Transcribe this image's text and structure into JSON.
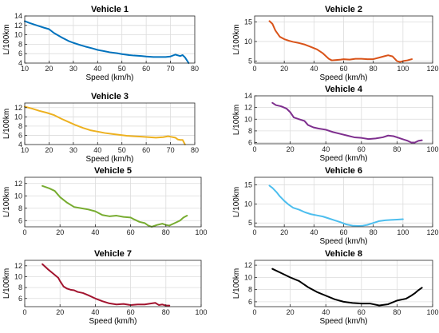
{
  "chart_data": [
    {
      "type": "line",
      "title": "Vehicle 1",
      "xlabel": "Speed (km/h)",
      "ylabel": "L/100km",
      "xlim": [
        10,
        80
      ],
      "ylim": [
        4,
        14
      ],
      "xticks": [
        10,
        20,
        30,
        40,
        50,
        60,
        70,
        80
      ],
      "yticks": [
        4,
        6,
        8,
        10,
        12,
        14
      ],
      "grid": true,
      "color": "#0072BD",
      "series": [
        {
          "x": [
            10,
            12,
            15,
            18,
            20,
            22,
            25,
            28,
            30,
            33,
            35,
            38,
            40,
            43,
            45,
            48,
            50,
            53,
            55,
            58,
            60,
            63,
            65,
            68,
            70,
            72,
            74,
            75,
            76,
            77.5
          ],
          "y": [
            12.9,
            12.5,
            12.0,
            11.5,
            11.2,
            10.4,
            9.5,
            8.7,
            8.3,
            7.8,
            7.5,
            7.1,
            6.8,
            6.5,
            6.3,
            6.1,
            5.9,
            5.7,
            5.6,
            5.5,
            5.4,
            5.3,
            5.3,
            5.3,
            5.4,
            5.8,
            5.5,
            5.7,
            5.2,
            4.0
          ]
        }
      ]
    },
    {
      "type": "line",
      "title": "Vehicle 2",
      "xlabel": "Speed (km/h)",
      "ylabel": "L/100km",
      "xlim": [
        0,
        120
      ],
      "ylim": [
        4.5,
        16.5
      ],
      "xticks": [
        0,
        20,
        40,
        60,
        80,
        100,
        120
      ],
      "yticks": [
        5,
        10,
        15
      ],
      "grid": true,
      "color": "#D95319",
      "series": [
        {
          "x": [
            10,
            12,
            14,
            17,
            20,
            23,
            26,
            30,
            34,
            38,
            42,
            46,
            50,
            52,
            55,
            58,
            60,
            64,
            68,
            72,
            76,
            80,
            84,
            88,
            90,
            93,
            96,
            98,
            100,
            103,
            106
          ],
          "y": [
            15.2,
            14.5,
            12.8,
            11.2,
            10.6,
            10.2,
            9.9,
            9.6,
            9.2,
            8.6,
            8.0,
            7.0,
            5.6,
            5.2,
            5.3,
            5.4,
            5.5,
            5.4,
            5.6,
            5.6,
            5.5,
            5.5,
            5.9,
            6.3,
            6.5,
            6.2,
            5.0,
            4.8,
            5.0,
            5.2,
            5.5
          ]
        }
      ]
    },
    {
      "type": "line",
      "title": "Vehicle 3",
      "xlabel": "Speed (km/h)",
      "ylabel": "L/100km",
      "xlim": [
        10,
        80
      ],
      "ylim": [
        4,
        13
      ],
      "xticks": [
        10,
        20,
        30,
        40,
        50,
        60,
        70,
        80
      ],
      "yticks": [
        4,
        6,
        8,
        10,
        12
      ],
      "grid": true,
      "color": "#EDB120",
      "series": [
        {
          "x": [
            10,
            13,
            16,
            19,
            22,
            25,
            28,
            31,
            34,
            37,
            40,
            43,
            46,
            49,
            52,
            55,
            58,
            61,
            64,
            67,
            69,
            70,
            72,
            73,
            74,
            75,
            76
          ],
          "y": [
            12.2,
            11.8,
            11.3,
            10.9,
            10.4,
            9.6,
            8.9,
            8.2,
            7.6,
            7.1,
            6.8,
            6.5,
            6.3,
            6.1,
            5.9,
            5.8,
            5.7,
            5.6,
            5.5,
            5.6,
            5.8,
            5.7,
            5.5,
            5.1,
            5.0,
            5.0,
            4.0
          ]
        }
      ]
    },
    {
      "type": "line",
      "title": "Vehicle 4",
      "xlabel": "Speed (km/h)",
      "ylabel": "L/100km",
      "xlim": [
        0,
        100
      ],
      "ylim": [
        5.8,
        14
      ],
      "xticks": [
        0,
        20,
        40,
        60,
        80,
        100
      ],
      "yticks": [
        6,
        8,
        10,
        12,
        14
      ],
      "grid": true,
      "color": "#7E2F8E",
      "series": [
        {
          "x": [
            10,
            12,
            15,
            18,
            20,
            22,
            25,
            28,
            30,
            33,
            36,
            40,
            44,
            48,
            52,
            56,
            60,
            64,
            68,
            72,
            75,
            78,
            80,
            83,
            86,
            88,
            90,
            92,
            94
          ],
          "y": [
            12.8,
            12.4,
            12.2,
            11.8,
            11.2,
            10.3,
            10.0,
            9.7,
            9.0,
            8.6,
            8.4,
            8.2,
            7.8,
            7.5,
            7.2,
            6.9,
            6.8,
            6.6,
            6.7,
            6.9,
            7.2,
            7.1,
            6.9,
            6.6,
            6.3,
            6.0,
            6.0,
            6.3,
            6.4
          ]
        }
      ]
    },
    {
      "type": "line",
      "title": "Vehicle 5",
      "xlabel": "",
      "ylabel": "L/100km",
      "xlim": [
        0,
        100
      ],
      "ylim": [
        5,
        13
      ],
      "xticks": [
        0,
        20,
        40,
        60,
        80,
        100
      ],
      "yticks": [
        6,
        8,
        10,
        12
      ],
      "grid": true,
      "color": "#77AC30",
      "series": [
        {
          "x": [
            10,
            14,
            17,
            20,
            24,
            28,
            32,
            36,
            40,
            44,
            48,
            52,
            56,
            60,
            62,
            65,
            68,
            70,
            72,
            75,
            78,
            80,
            82,
            85,
            88,
            90,
            92
          ],
          "y": [
            11.6,
            11.2,
            10.8,
            9.8,
            8.9,
            8.2,
            8.0,
            7.8,
            7.5,
            6.9,
            6.7,
            6.8,
            6.6,
            6.5,
            6.2,
            5.8,
            5.6,
            5.2,
            5.0,
            5.3,
            5.5,
            5.3,
            5.2,
            5.6,
            6.0,
            6.5,
            6.8
          ]
        }
      ]
    },
    {
      "type": "line",
      "title": "Vehicle 6",
      "xlabel": "Speed (km/h)",
      "ylabel": "L/100km",
      "xlim": [
        0,
        120
      ],
      "ylim": [
        4,
        17
      ],
      "xticks": [
        0,
        20,
        40,
        60,
        80,
        100,
        120
      ],
      "yticks": [
        5,
        10,
        15
      ],
      "grid": true,
      "color": "#4DBEEE",
      "series": [
        {
          "x": [
            10,
            12,
            15,
            17,
            20,
            23,
            26,
            30,
            34,
            38,
            42,
            46,
            50,
            54,
            58,
            62,
            66,
            70,
            73,
            76,
            80,
            84,
            88,
            92,
            96,
            100
          ],
          "y": [
            14.8,
            14.2,
            13.0,
            12.0,
            10.8,
            9.8,
            9.0,
            8.5,
            7.8,
            7.3,
            7.0,
            6.7,
            6.2,
            5.7,
            5.2,
            4.6,
            4.3,
            4.2,
            4.3,
            4.5,
            5.0,
            5.5,
            5.7,
            5.8,
            5.9,
            6.0
          ]
        }
      ]
    },
    {
      "type": "line",
      "title": "Vehicle 7",
      "xlabel": "Speed (km/h)",
      "ylabel": "L/100km",
      "xlim": [
        0,
        100
      ],
      "ylim": [
        4.5,
        13
      ],
      "xticks": [
        0,
        20,
        40,
        60,
        80,
        100
      ],
      "yticks": [
        6,
        8,
        10,
        12
      ],
      "grid": true,
      "color": "#A2142F",
      "series": [
        {
          "x": [
            10,
            13,
            16,
            19,
            20,
            22,
            24,
            26,
            28,
            30,
            33,
            36,
            40,
            44,
            48,
            52,
            56,
            60,
            64,
            68,
            72,
            74,
            76,
            78,
            80,
            82
          ],
          "y": [
            12.3,
            11.4,
            10.6,
            9.8,
            9.2,
            8.2,
            7.8,
            7.6,
            7.5,
            7.2,
            7.0,
            6.6,
            6.0,
            5.5,
            5.1,
            4.9,
            5.0,
            4.8,
            4.9,
            4.9,
            5.1,
            5.2,
            4.8,
            4.9,
            4.7,
            4.7
          ]
        }
      ]
    },
    {
      "type": "line",
      "title": "Vehicle 8",
      "xlabel": "Speed (km/h)",
      "ylabel": "L/100km",
      "xlim": [
        0,
        100
      ],
      "ylim": [
        5.2,
        12.8
      ],
      "xticks": [
        0,
        20,
        40,
        60,
        80,
        100
      ],
      "yticks": [
        6,
        8,
        10,
        12
      ],
      "grid": true,
      "color": "#000000",
      "series": [
        {
          "x": [
            10,
            15,
            20,
            25,
            30,
            35,
            40,
            45,
            50,
            55,
            60,
            65,
            70,
            75,
            80,
            85,
            88,
            90,
            92,
            94
          ],
          "y": [
            11.4,
            10.7,
            10.0,
            9.4,
            8.4,
            7.6,
            7.0,
            6.4,
            6.0,
            5.8,
            5.7,
            5.7,
            5.4,
            5.6,
            6.2,
            6.5,
            7.0,
            7.4,
            7.9,
            8.3
          ]
        }
      ]
    }
  ]
}
